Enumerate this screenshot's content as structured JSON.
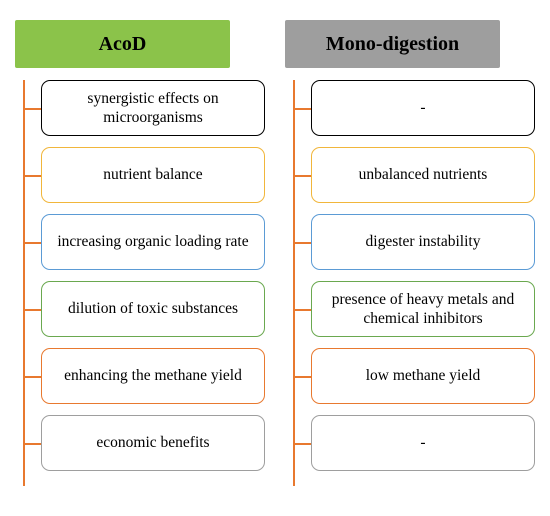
{
  "spine_color": "#e8792f",
  "connector_color": "#e8792f",
  "columns": [
    {
      "header": "AcoD",
      "header_bg": "#8bc34a",
      "header_text_color": "#000000",
      "items": [
        {
          "label": "synergistic effects on microorganisms",
          "border": "#000000"
        },
        {
          "label": "nutrient balance",
          "border": "#f1b63b"
        },
        {
          "label": "increasing organic loading rate",
          "border": "#5b9bd5"
        },
        {
          "label": "dilution of toxic substances",
          "border": "#6aa84f"
        },
        {
          "label": "enhancing the methane yield",
          "border": "#e8792f"
        },
        {
          "label": "economic benefits",
          "border": "#9e9e9e"
        }
      ]
    },
    {
      "header": "Mono-digestion",
      "header_bg": "#9e9e9e",
      "header_text_color": "#000000",
      "items": [
        {
          "label": "-",
          "border": "#000000"
        },
        {
          "label": "unbalanced nutrients",
          "border": "#f1b63b"
        },
        {
          "label": "digester instability",
          "border": "#5b9bd5"
        },
        {
          "label": "presence of heavy metals and chemical inhibitors",
          "border": "#6aa84f"
        },
        {
          "label": "low methane yield",
          "border": "#e8792f"
        },
        {
          "label": "-",
          "border": "#9e9e9e"
        }
      ]
    }
  ]
}
